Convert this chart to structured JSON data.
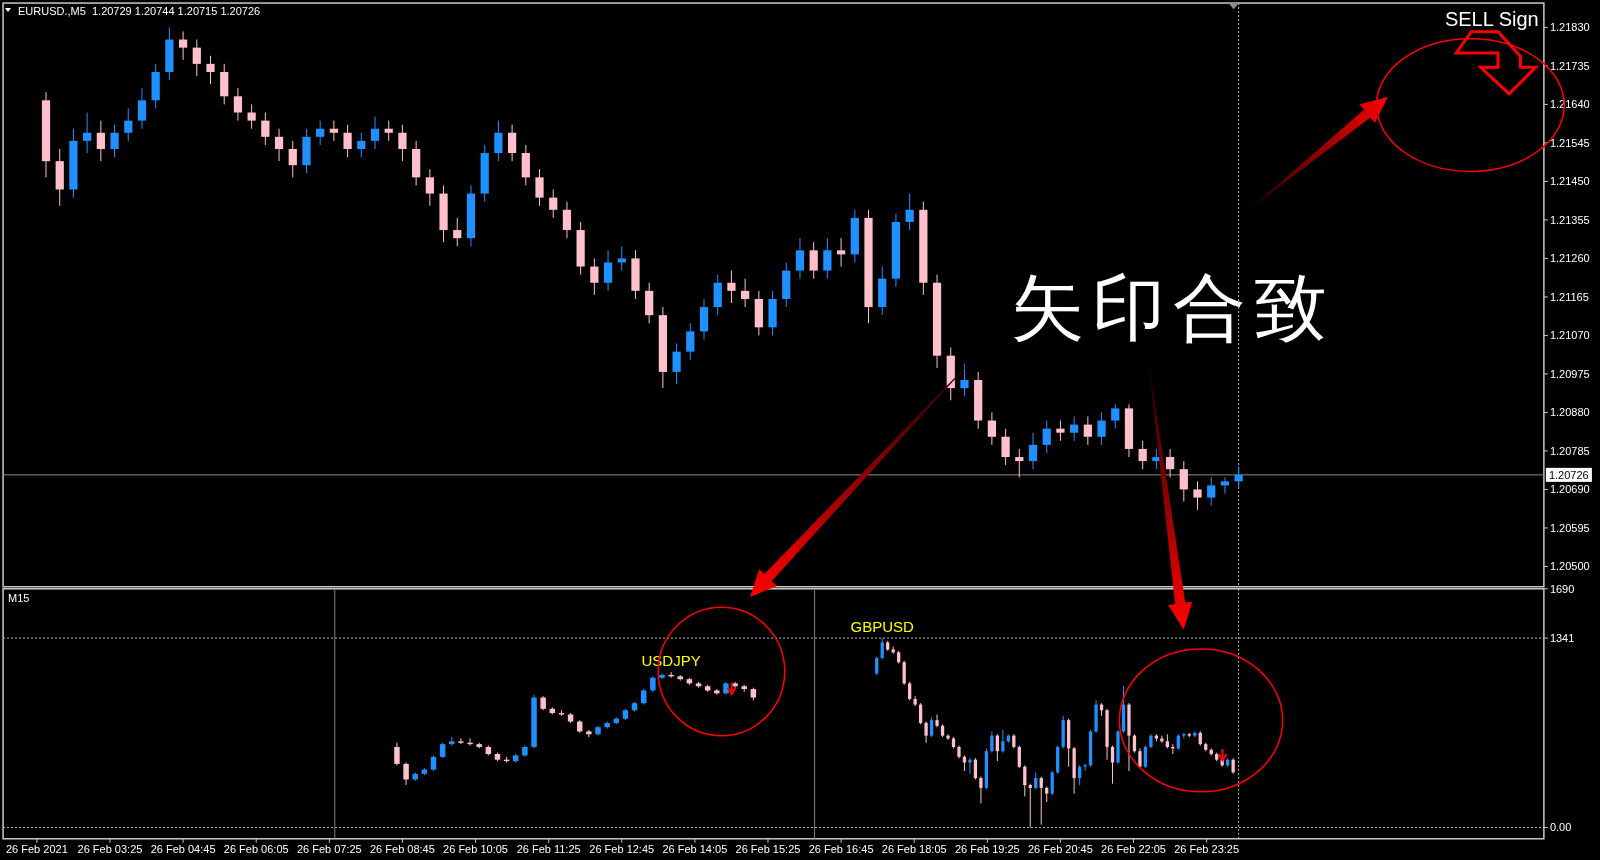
{
  "chart_data": [
    {
      "type": "candlestick",
      "title": "EURUSD.,M5  1.20729 1.20744 1.20715 1.20726",
      "x": [
        "2021-02-26T02:15",
        "2021-02-26T02:30",
        "2021-02-26T02:45",
        "2021-02-26T03:00",
        "2021-02-26T03:15",
        "2021-02-26T03:30",
        "2021-02-26T03:45",
        "2021-02-26T04:00",
        "2021-02-26T04:15",
        "2021-02-26T04:30",
        "2021-02-26T04:45",
        "2021-02-26T05:00",
        "2021-02-26T05:15",
        "2021-02-26T05:30",
        "2021-02-26T05:45",
        "2021-02-26T06:00",
        "2021-02-26T06:15",
        "2021-02-26T06:30",
        "2021-02-26T06:45",
        "2021-02-26T07:00",
        "2021-02-26T07:15",
        "2021-02-26T07:30",
        "2021-02-26T07:45",
        "2021-02-26T08:00",
        "2021-02-26T08:15",
        "2021-02-26T08:30",
        "2021-02-26T08:45",
        "2021-02-26T09:00",
        "2021-02-26T09:15",
        "2021-02-26T09:30",
        "2021-02-26T09:45",
        "2021-02-26T10:00",
        "2021-02-26T10:15",
        "2021-02-26T10:30",
        "2021-02-26T10:45",
        "2021-02-26T11:00",
        "2021-02-26T11:15",
        "2021-02-26T11:30",
        "2021-02-26T11:45",
        "2021-02-26T12:00",
        "2021-02-26T12:15",
        "2021-02-26T12:30",
        "2021-02-26T12:45",
        "2021-02-26T13:00",
        "2021-02-26T13:15",
        "2021-02-26T13:30",
        "2021-02-26T13:45",
        "2021-02-26T14:00",
        "2021-02-26T14:15",
        "2021-02-26T14:30",
        "2021-02-26T14:45",
        "2021-02-26T15:00",
        "2021-02-26T15:15",
        "2021-02-26T15:30",
        "2021-02-26T15:45",
        "2021-02-26T16:00",
        "2021-02-26T16:15",
        "2021-02-26T16:30",
        "2021-02-26T16:45",
        "2021-02-26T17:00",
        "2021-02-26T17:15",
        "2021-02-26T17:30",
        "2021-02-26T17:45",
        "2021-02-26T18:00",
        "2021-02-26T18:15",
        "2021-02-26T18:30",
        "2021-02-26T18:45",
        "2021-02-26T19:00",
        "2021-02-26T19:15",
        "2021-02-26T19:30",
        "2021-02-26T19:45",
        "2021-02-26T20:00",
        "2021-02-26T20:15",
        "2021-02-26T20:30",
        "2021-02-26T20:45",
        "2021-02-26T21:00",
        "2021-02-26T21:15",
        "2021-02-26T21:30",
        "2021-02-26T21:45",
        "2021-02-26T22:00",
        "2021-02-26T22:15",
        "2021-02-26T22:30",
        "2021-02-26T22:45",
        "2021-02-26T23:00",
        "2021-02-26T23:15",
        "2021-02-26T23:30",
        "2021-02-26T23:45",
        "2021-02-27T00:00"
      ],
      "ohlc": [
        [
          1.2165,
          1.2167,
          1.2146,
          1.215
        ],
        [
          1.215,
          1.2153,
          1.2139,
          1.2143
        ],
        [
          1.2143,
          1.2158,
          1.2141,
          1.2155
        ],
        [
          1.2155,
          1.2162,
          1.2152,
          1.2157
        ],
        [
          1.2157,
          1.216,
          1.215,
          1.2153
        ],
        [
          1.2153,
          1.2159,
          1.2151,
          1.2157
        ],
        [
          1.2157,
          1.2163,
          1.2155,
          1.216
        ],
        [
          1.216,
          1.2168,
          1.2158,
          1.2165
        ],
        [
          1.2165,
          1.2174,
          1.2163,
          1.2172
        ],
        [
          1.2172,
          1.2183,
          1.217,
          1.218
        ],
        [
          1.218,
          1.2182,
          1.2175,
          1.2178
        ],
        [
          1.2178,
          1.218,
          1.2171,
          1.2174
        ],
        [
          1.2174,
          1.2176,
          1.2169,
          1.2172
        ],
        [
          1.2172,
          1.2174,
          1.2164,
          1.2166
        ],
        [
          1.2166,
          1.2168,
          1.216,
          1.2162
        ],
        [
          1.2162,
          1.2164,
          1.2158,
          1.216
        ],
        [
          1.216,
          1.2162,
          1.2154,
          1.2156
        ],
        [
          1.2156,
          1.2158,
          1.215,
          1.2153
        ],
        [
          1.2153,
          1.2155,
          1.2146,
          1.2149
        ],
        [
          1.2149,
          1.2158,
          1.2147,
          1.2156
        ],
        [
          1.2156,
          1.216,
          1.2154,
          1.2158
        ],
        [
          1.2158,
          1.216,
          1.2155,
          1.2157
        ],
        [
          1.2157,
          1.2159,
          1.2151,
          1.2153
        ],
        [
          1.2153,
          1.2157,
          1.2151,
          1.2155
        ],
        [
          1.2155,
          1.2161,
          1.2153,
          1.2158
        ],
        [
          1.2158,
          1.216,
          1.2155,
          1.2157
        ],
        [
          1.2157,
          1.2159,
          1.215,
          1.2153
        ],
        [
          1.2153,
          1.2155,
          1.2144,
          1.2146
        ],
        [
          1.2146,
          1.2148,
          1.2139,
          1.2142
        ],
        [
          1.2142,
          1.2144,
          1.213,
          1.2133
        ],
        [
          1.2133,
          1.2136,
          1.2129,
          1.2131
        ],
        [
          1.2131,
          1.2144,
          1.2129,
          1.2142
        ],
        [
          1.2142,
          1.2154,
          1.214,
          1.2152
        ],
        [
          1.2152,
          1.216,
          1.215,
          1.2157
        ],
        [
          1.2157,
          1.2159,
          1.215,
          1.2152
        ],
        [
          1.2152,
          1.2154,
          1.2144,
          1.2146
        ],
        [
          1.2146,
          1.2148,
          1.2139,
          1.2141
        ],
        [
          1.2141,
          1.2143,
          1.2136,
          1.2138
        ],
        [
          1.2138,
          1.214,
          1.2131,
          1.2133
        ],
        [
          1.2133,
          1.2135,
          1.2122,
          1.2124
        ],
        [
          1.2124,
          1.2126,
          1.2117,
          1.212
        ],
        [
          1.212,
          1.2128,
          1.2118,
          1.2125
        ],
        [
          1.2125,
          1.2129,
          1.2123,
          1.2126
        ],
        [
          1.2126,
          1.2128,
          1.2116,
          1.2118
        ],
        [
          1.2118,
          1.212,
          1.211,
          1.2112
        ],
        [
          1.2112,
          1.2114,
          1.2094,
          1.2098
        ],
        [
          1.2098,
          1.2105,
          1.2095,
          1.2103
        ],
        [
          1.2103,
          1.211,
          1.2101,
          1.2108
        ],
        [
          1.2108,
          1.2116,
          1.2106,
          1.2114
        ],
        [
          1.2114,
          1.2122,
          1.2112,
          1.212
        ],
        [
          1.212,
          1.2123,
          1.2115,
          1.2118
        ],
        [
          1.2118,
          1.2121,
          1.2114,
          1.2116
        ],
        [
          1.2116,
          1.2118,
          1.2107,
          1.2109
        ],
        [
          1.2109,
          1.2118,
          1.2107,
          1.2116
        ],
        [
          1.2116,
          1.2125,
          1.2114,
          1.2123
        ],
        [
          1.2123,
          1.2131,
          1.2121,
          1.2128
        ],
        [
          1.2128,
          1.213,
          1.2121,
          1.2123
        ],
        [
          1.2123,
          1.2131,
          1.2121,
          1.2128
        ],
        [
          1.2128,
          1.2131,
          1.2124,
          1.2127
        ],
        [
          1.2127,
          1.2138,
          1.2125,
          1.2136
        ],
        [
          1.2136,
          1.2138,
          1.211,
          1.2114
        ],
        [
          1.2114,
          1.2124,
          1.2112,
          1.2121
        ],
        [
          1.2121,
          1.2137,
          1.2119,
          1.2135
        ],
        [
          1.2135,
          1.2142,
          1.2133,
          1.2138
        ],
        [
          1.2138,
          1.214,
          1.2117,
          1.212
        ],
        [
          1.212,
          1.2122,
          1.2099,
          1.2102
        ],
        [
          1.2102,
          1.2104,
          1.2091,
          1.2094
        ],
        [
          1.2094,
          1.21,
          1.2092,
          1.2096
        ],
        [
          1.2096,
          1.2098,
          1.2084,
          1.2086
        ],
        [
          1.2086,
          1.2088,
          1.208,
          1.2082
        ],
        [
          1.2082,
          1.2084,
          1.2075,
          1.2077
        ],
        [
          1.2077,
          1.2079,
          1.2072,
          1.2076
        ],
        [
          1.2076,
          1.2083,
          1.2074,
          1.208
        ],
        [
          1.208,
          1.2086,
          1.2078,
          1.2084
        ],
        [
          1.2084,
          1.2086,
          1.2081,
          1.2083
        ],
        [
          1.2083,
          1.2087,
          1.2081,
          1.2085
        ],
        [
          1.2085,
          1.2087,
          1.208,
          1.2082
        ],
        [
          1.2082,
          1.2088,
          1.208,
          1.2086
        ],
        [
          1.2086,
          1.209,
          1.2084,
          1.2089
        ],
        [
          1.2089,
          1.209,
          1.2077,
          1.2079
        ],
        [
          1.2079,
          1.2081,
          1.2074,
          1.2076
        ],
        [
          1.2076,
          1.2079,
          1.2074,
          1.2077
        ],
        [
          1.2077,
          1.2079,
          1.2072,
          1.2074
        ],
        [
          1.2074,
          1.2076,
          1.2066,
          1.2069
        ],
        [
          1.2069,
          1.2071,
          1.2064,
          1.2067
        ],
        [
          1.2067,
          1.2072,
          1.2065,
          1.207
        ],
        [
          1.207,
          1.2072,
          1.2068,
          1.2071
        ],
        [
          1.2071,
          1.20744,
          1.20695,
          1.20726
        ]
      ],
      "colors": [
        "#ffc0cb",
        "#ffc0cb",
        "#1e90ff",
        "#1e90ff",
        "#ffc0cb",
        "#1e90ff",
        "#1e90ff",
        "#1e90ff",
        "#1e90ff",
        "#1e90ff",
        "#ffc0cb",
        "#ffc0cb",
        "#ffc0cb",
        "#ffc0cb",
        "#ffc0cb",
        "#ffc0cb",
        "#ffc0cb",
        "#ffc0cb",
        "#ffc0cb",
        "#1e90ff",
        "#1e90ff",
        "#ffc0cb",
        "#ffc0cb",
        "#1e90ff",
        "#1e90ff",
        "#ffc0cb",
        "#ffc0cb",
        "#ffc0cb",
        "#ffc0cb",
        "#ffc0cb",
        "#ffc0cb",
        "#1e90ff",
        "#1e90ff",
        "#1e90ff",
        "#ffc0cb",
        "#ffc0cb",
        "#ffc0cb",
        "#ffc0cb",
        "#ffc0cb",
        "#ffc0cb",
        "#ffc0cb",
        "#1e90ff",
        "#1e90ff",
        "#ffc0cb",
        "#ffc0cb",
        "#ffc0cb",
        "#1e90ff",
        "#1e90ff",
        "#1e90ff",
        "#1e90ff",
        "#ffc0cb",
        "#ffc0cb",
        "#ffc0cb",
        "#1e90ff",
        "#1e90ff",
        "#1e90ff",
        "#ffc0cb",
        "#1e90ff",
        "#ffc0cb",
        "#1e90ff",
        "#ffc0cb",
        "#1e90ff",
        "#1e90ff",
        "#1e90ff",
        "#ffc0cb",
        "#ffc0cb",
        "#ffc0cb",
        "#1e90ff",
        "#ffc0cb",
        "#ffc0cb",
        "#ffc0cb",
        "#ffc0cb",
        "#1e90ff",
        "#1e90ff",
        "#ffc0cb",
        "#1e90ff",
        "#ffc0cb",
        "#1e90ff",
        "#1e90ff",
        "#ffc0cb",
        "#ffc0cb",
        "#1e90ff",
        "#ffc0cb",
        "#ffc0cb",
        "#ffc0cb",
        "#1e90ff",
        "#1e90ff",
        "#1e90ff"
      ],
      "xlim": [
        "2021-02-26T01:28",
        "2021-02-27T05:34"
      ],
      "ylim": [
        1.2045,
        1.2189
      ],
      "yticks": [
        {
          "value": 1.2183,
          "label": "1.21830"
        },
        {
          "value": 1.21735,
          "label": "1.21735"
        },
        {
          "value": 1.2164,
          "label": "1.21640"
        },
        {
          "value": 1.21545,
          "label": "1.21545"
        },
        {
          "value": 1.2145,
          "label": "1.21450"
        },
        {
          "value": 1.21355,
          "label": "1.21355"
        },
        {
          "value": 1.2126,
          "label": "1.21260"
        },
        {
          "value": 1.21165,
          "label": "1.21165"
        },
        {
          "value": 1.2107,
          "label": "1.21070"
        },
        {
          "value": 1.20975,
          "label": "1.20975"
        },
        {
          "value": 1.2088,
          "label": "1.20880"
        },
        {
          "value": 1.20785,
          "label": "1.20785"
        },
        {
          "value": 1.2069,
          "label": "1.20690"
        },
        {
          "value": 1.20595,
          "label": "1.20595"
        },
        {
          "value": 1.205,
          "label": "1.20500"
        }
      ],
      "tick_labels": "y",
      "ref_lines": [
        {
          "axis": "y",
          "value": 1.20726,
          "label": "1.20726",
          "color": "#8c8c8c",
          "line_style": "solid"
        },
        {
          "axis": "x",
          "value": "2021-02-27T00:00",
          "color": "#c0c0c0",
          "line_style": "dotted"
        }
      ],
      "annotations": [
        "矢印合致",
        "SELL Sign"
      ]
    },
    {
      "type": "candlestick",
      "series": [
        {
          "name": "USDJPY",
          "x": [
            "2021-02-26T08:39",
            "2021-02-26T08:49",
            "2021-02-26T08:59",
            "2021-02-26T09:09",
            "2021-02-26T09:19",
            "2021-02-26T09:29",
            "2021-02-26T09:39",
            "2021-02-26T09:49",
            "2021-02-26T09:59",
            "2021-02-26T10:09",
            "2021-02-26T10:19",
            "2021-02-26T10:29",
            "2021-02-26T10:39",
            "2021-02-26T10:49",
            "2021-02-26T10:59",
            "2021-02-26T11:09",
            "2021-02-26T11:19",
            "2021-02-26T11:29",
            "2021-02-26T11:39",
            "2021-02-26T11:49",
            "2021-02-26T11:59",
            "2021-02-26T12:09",
            "2021-02-26T12:19",
            "2021-02-26T12:29",
            "2021-02-26T12:39",
            "2021-02-26T12:49",
            "2021-02-26T12:59",
            "2021-02-26T13:09",
            "2021-02-26T13:19",
            "2021-02-26T13:29",
            "2021-02-26T13:39",
            "2021-02-26T13:49",
            "2021-02-26T13:59",
            "2021-02-26T14:09",
            "2021-02-26T14:19",
            "2021-02-26T14:29",
            "2021-02-26T14:39",
            "2021-02-26T14:49",
            "2021-02-26T14:59",
            "2021-02-26T15:09"
          ],
          "ohlc": [
            [
              570,
              600,
              440,
              450
            ],
            [
              450,
              460,
              300,
              340
            ],
            [
              340,
              390,
              330,
              380
            ],
            [
              380,
              420,
              370,
              410
            ],
            [
              410,
              510,
              400,
              500
            ],
            [
              500,
              600,
              490,
              590
            ],
            [
              590,
              640,
              580,
              610
            ],
            [
              610,
              630,
              590,
              600
            ],
            [
              600,
              630,
              580,
              590
            ],
            [
              590,
              600,
              560,
              570
            ],
            [
              570,
              580,
              510,
              520
            ],
            [
              520,
              530,
              470,
              480
            ],
            [
              480,
              500,
              460,
              470
            ],
            [
              470,
              520,
              460,
              510
            ],
            [
              510,
              580,
              500,
              570
            ],
            [
              570,
              940,
              560,
              920
            ],
            [
              920,
              930,
              830,
              840
            ],
            [
              840,
              850,
              800,
              810
            ],
            [
              810,
              830,
              790,
              800
            ],
            [
              800,
              810,
              740,
              750
            ],
            [
              750,
              760,
              670,
              680
            ],
            [
              680,
              690,
              640,
              660
            ],
            [
              660,
              720,
              650,
              710
            ],
            [
              710,
              750,
              700,
              740
            ],
            [
              740,
              780,
              730,
              770
            ],
            [
              770,
              840,
              760,
              830
            ],
            [
              830,
              890,
              820,
              880
            ],
            [
              880,
              980,
              870,
              970
            ],
            [
              970,
              1070,
              960,
              1060
            ],
            [
              1060,
              1090,
              1050,
              1080
            ],
            [
              1080,
              1100,
              1060,
              1070
            ],
            [
              1070,
              1080,
              1040,
              1050
            ],
            [
              1050,
              1060,
              1010,
              1020
            ],
            [
              1020,
              1030,
              990,
              1000
            ],
            [
              1000,
              1010,
              960,
              970
            ],
            [
              970,
              980,
              940,
              950
            ],
            [
              950,
              1030,
              940,
              1020
            ],
            [
              1020,
              1030,
              990,
              1000
            ],
            [
              1000,
              1010,
              960,
              980
            ],
            [
              980,
              990,
              900,
              920
            ]
          ],
          "colors": [
            "#ffc0cb",
            "#ffc0cb",
            "#1e90ff",
            "#1e90ff",
            "#1e90ff",
            "#1e90ff",
            "#1e90ff",
            "#ffc0cb",
            "#ffc0cb",
            "#ffc0cb",
            "#ffc0cb",
            "#ffc0cb",
            "#ffc0cb",
            "#1e90ff",
            "#1e90ff",
            "#1e90ff",
            "#ffc0cb",
            "#ffc0cb",
            "#ffc0cb",
            "#ffc0cb",
            "#ffc0cb",
            "#ffc0cb",
            "#1e90ff",
            "#1e90ff",
            "#1e90ff",
            "#1e90ff",
            "#1e90ff",
            "#1e90ff",
            "#1e90ff",
            "#1e90ff",
            "#ffc0cb",
            "#ffc0cb",
            "#ffc0cb",
            "#ffc0cb",
            "#ffc0cb",
            "#ffc0cb",
            "#1e90ff",
            "#ffc0cb",
            "#ffc0cb",
            "#ffc0cb"
          ]
        },
        {
          "name": "GBPUSD",
          "x": [
            "2021-02-26T17:24",
            "2021-02-26T17:30",
            "2021-02-26T17:36",
            "2021-02-26T17:42",
            "2021-02-26T17:48",
            "2021-02-26T17:54",
            "2021-02-26T18:00",
            "2021-02-26T18:06",
            "2021-02-26T18:12",
            "2021-02-26T18:18",
            "2021-02-26T18:24",
            "2021-02-26T18:30",
            "2021-02-26T18:36",
            "2021-02-26T18:42",
            "2021-02-26T18:48",
            "2021-02-26T18:54",
            "2021-02-26T19:00",
            "2021-02-26T19:06",
            "2021-02-26T19:12",
            "2021-02-26T19:18",
            "2021-02-26T19:24",
            "2021-02-26T19:30",
            "2021-02-26T19:36",
            "2021-02-26T19:42",
            "2021-02-26T19:48",
            "2021-02-26T19:54",
            "2021-02-26T20:00",
            "2021-02-26T20:06",
            "2021-02-26T20:12",
            "2021-02-26T20:18",
            "2021-02-26T20:24",
            "2021-02-26T20:30",
            "2021-02-26T20:36",
            "2021-02-26T20:42",
            "2021-02-26T20:48",
            "2021-02-26T20:54",
            "2021-02-26T21:00",
            "2021-02-26T21:06",
            "2021-02-26T21:12",
            "2021-02-26T21:18",
            "2021-02-26T21:24",
            "2021-02-26T21:30",
            "2021-02-26T21:36",
            "2021-02-26T21:42",
            "2021-02-26T21:48",
            "2021-02-26T21:54",
            "2021-02-26T22:00",
            "2021-02-26T22:06",
            "2021-02-26T22:12",
            "2021-02-26T22:18",
            "2021-02-26T22:24",
            "2021-02-26T22:30",
            "2021-02-26T22:36",
            "2021-02-26T22:42",
            "2021-02-26T22:48",
            "2021-02-26T22:54",
            "2021-02-26T23:00",
            "2021-02-26T23:06",
            "2021-02-26T23:12",
            "2021-02-26T23:18",
            "2021-02-26T23:24",
            "2021-02-26T23:30",
            "2021-02-26T23:36",
            "2021-02-26T23:42",
            "2021-02-26T23:48",
            "2021-02-26T23:54"
          ],
          "ohlc": [
            [
              1090,
              1210,
              1080,
              1200
            ],
            [
              1200,
              1340,
              1190,
              1310
            ],
            [
              1310,
              1320,
              1250,
              1260
            ],
            [
              1260,
              1280,
              1230,
              1240
            ],
            [
              1240,
              1250,
              1160,
              1170
            ],
            [
              1170,
              1180,
              1010,
              1020
            ],
            [
              1020,
              1030,
              900,
              910
            ],
            [
              910,
              930,
              860,
              870
            ],
            [
              870,
              880,
              730,
              740
            ],
            [
              740,
              750,
              600,
              650
            ],
            [
              650,
              780,
              640,
              760
            ],
            [
              760,
              800,
              710,
              720
            ],
            [
              720,
              730,
              640,
              650
            ],
            [
              650,
              660,
              620,
              630
            ],
            [
              630,
              640,
              560,
              570
            ],
            [
              570,
              580,
              490,
              500
            ],
            [
              500,
              510,
              400,
              460
            ],
            [
              460,
              490,
              380,
              480
            ],
            [
              480,
              490,
              340,
              350
            ],
            [
              350,
              360,
              170,
              280
            ],
            [
              280,
              560,
              270,
              540
            ],
            [
              540,
              680,
              530,
              650
            ],
            [
              650,
              660,
              470,
              540
            ],
            [
              540,
              690,
              530,
              610
            ],
            [
              610,
              660,
              600,
              650
            ],
            [
              650,
              660,
              560,
              570
            ],
            [
              570,
              580,
              420,
              430
            ],
            [
              430,
              440,
              220,
              300
            ],
            [
              300,
              310,
              0,
              280
            ],
            [
              280,
              390,
              270,
              350
            ],
            [
              350,
              360,
              20,
              280
            ],
            [
              280,
              290,
              180,
              240
            ],
            [
              240,
              400,
              230,
              390
            ],
            [
              390,
              580,
              380,
              570
            ],
            [
              570,
              790,
              560,
              760
            ],
            [
              760,
              770,
              430,
              560
            ],
            [
              560,
              570,
              240,
              350
            ],
            [
              350,
              440,
              300,
              430
            ],
            [
              430,
              450,
              400,
              440
            ],
            [
              440,
              690,
              430,
              680
            ],
            [
              680,
              900,
              670,
              870
            ],
            [
              870,
              880,
              790,
              830
            ],
            [
              830,
              840,
              480,
              570
            ],
            [
              570,
              580,
              310,
              460
            ],
            [
              460,
              690,
              450,
              680
            ],
            [
              680,
              1000,
              670,
              870
            ],
            [
              870,
              880,
              400,
              650
            ],
            [
              650,
              660,
              530,
              540
            ],
            [
              540,
              560,
              420,
              430
            ],
            [
              430,
              580,
              420,
              570
            ],
            [
              570,
              660,
              560,
              650
            ],
            [
              650,
              660,
              610,
              630
            ],
            [
              630,
              650,
              600,
              610
            ],
            [
              610,
              660,
              560,
              570
            ],
            [
              570,
              590,
              520,
              560
            ],
            [
              560,
              660,
              550,
              650
            ],
            [
              650,
              670,
              630,
              660
            ],
            [
              660,
              670,
              640,
              650
            ],
            [
              650,
              680,
              640,
              670
            ],
            [
              670,
              680,
              580,
              590
            ],
            [
              590,
              600,
              540,
              550
            ],
            [
              550,
              560,
              510,
              520
            ],
            [
              520,
              530,
              470,
              480
            ],
            [
              480,
              490,
              430,
              440
            ],
            [
              440,
              490,
              430,
              480
            ],
            [
              480,
              490,
              380,
              390
            ]
          ],
          "colors": [
            "#1e90ff",
            "#1e90ff",
            "#ffc0cb",
            "#ffc0cb",
            "#ffc0cb",
            "#ffc0cb",
            "#ffc0cb",
            "#ffc0cb",
            "#ffc0cb",
            "#ffc0cb",
            "#1e90ff",
            "#ffc0cb",
            "#ffc0cb",
            "#ffc0cb",
            "#ffc0cb",
            "#ffc0cb",
            "#ffc0cb",
            "#1e90ff",
            "#ffc0cb",
            "#ffc0cb",
            "#1e90ff",
            "#1e90ff",
            "#ffc0cb",
            "#1e90ff",
            "#1e90ff",
            "#ffc0cb",
            "#ffc0cb",
            "#ffc0cb",
            "#ffc0cb",
            "#1e90ff",
            "#ffc0cb",
            "#ffc0cb",
            "#1e90ff",
            "#1e90ff",
            "#1e90ff",
            "#ffc0cb",
            "#ffc0cb",
            "#1e90ff",
            "#1e90ff",
            "#1e90ff",
            "#1e90ff",
            "#ffc0cb",
            "#ffc0cb",
            "#ffc0cb",
            "#1e90ff",
            "#1e90ff",
            "#ffc0cb",
            "#ffc0cb",
            "#ffc0cb",
            "#1e90ff",
            "#1e90ff",
            "#ffc0cb",
            "#ffc0cb",
            "#ffc0cb",
            "#ffc0cb",
            "#1e90ff",
            "#1e90ff",
            "#ffc0cb",
            "#1e90ff",
            "#ffc0cb",
            "#ffc0cb",
            "#ffc0cb",
            "#ffc0cb",
            "#ffc0cb",
            "#1e90ff",
            "#ffc0cb"
          ]
        }
      ],
      "xlim": [
        "2021-02-26T01:28",
        "2021-02-27T05:34"
      ],
      "xticks": [
        {
          "value": "2021-02-26T02:05",
          "label": "26 Feb 2021"
        },
        {
          "value": "2021-02-26T03:25",
          "label": "26 Feb 03:25"
        },
        {
          "value": "2021-02-26T04:45",
          "label": "26 Feb 04:45"
        },
        {
          "value": "2021-02-26T06:05",
          "label": "26 Feb 06:05"
        },
        {
          "value": "2021-02-26T07:25",
          "label": "26 Feb 07:25"
        },
        {
          "value": "2021-02-26T08:45",
          "label": "26 Feb 08:45"
        },
        {
          "value": "2021-02-26T10:05",
          "label": "26 Feb 10:05"
        },
        {
          "value": "2021-02-26T11:25",
          "label": "26 Feb 11:25"
        },
        {
          "value": "2021-02-26T12:45",
          "label": "26 Feb 12:45"
        },
        {
          "value": "2021-02-26T14:05",
          "label": "26 Feb 14:05"
        },
        {
          "value": "2021-02-26T15:25",
          "label": "26 Feb 15:25"
        },
        {
          "value": "2021-02-26T16:45",
          "label": "26 Feb 16:45"
        },
        {
          "value": "2021-02-26T18:05",
          "label": "26 Feb 18:05"
        },
        {
          "value": "2021-02-26T19:25",
          "label": "26 Feb 19:25"
        },
        {
          "value": "2021-02-26T20:45",
          "label": "26 Feb 20:45"
        },
        {
          "value": "2021-02-26T22:05",
          "label": "26 Feb 22:05"
        },
        {
          "value": "2021-02-26T23:25",
          "label": "26 Feb 23:25"
        }
      ],
      "ylim": [
        -80,
        1690
      ],
      "yticks": [
        1690,
        1341,
        {
          "value": 0,
          "label": "0.00"
        }
      ],
      "ref_lines": [
        {
          "axis": "y",
          "value": 1341,
          "color": "#c0c0c0",
          "line_style": "dotted"
        },
        {
          "axis": "y",
          "value": 0,
          "color": "#c0c0c0",
          "line_style": "dotted"
        },
        {
          "axis": "x",
          "value": "2021-02-26T07:31",
          "color": "#808080",
          "line_style": "solid"
        },
        {
          "axis": "x",
          "value": "2021-02-26T16:16",
          "color": "#808080",
          "line_style": "solid"
        },
        {
          "axis": "x",
          "value": "2021-02-27T00:00",
          "color": "#c0c0c0",
          "line_style": "dotted"
        }
      ],
      "annotations": [
        "M15"
      ]
    }
  ]
}
